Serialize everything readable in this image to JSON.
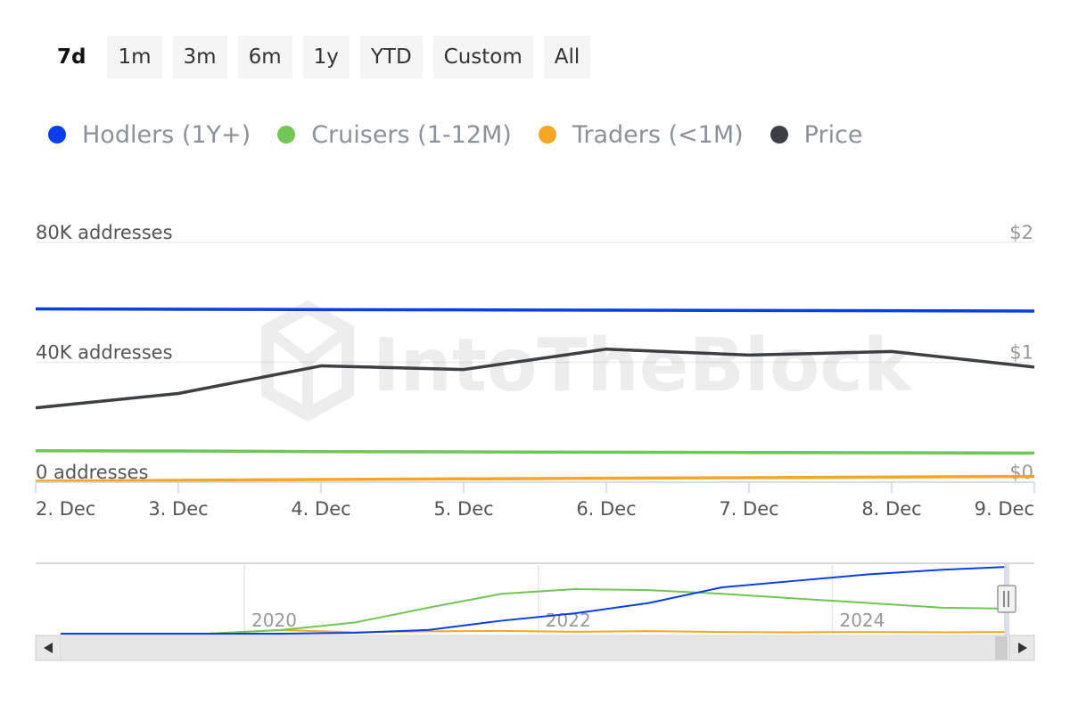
{
  "range_selector": {
    "buttons": [
      "7d",
      "1m",
      "3m",
      "6m",
      "1y",
      "YTD",
      "Custom",
      "All"
    ],
    "active": "7d"
  },
  "legend": [
    {
      "name": "Hodlers (1Y+)",
      "color": "#0a3ee8"
    },
    {
      "name": "Cruisers (1-12M)",
      "color": "#72c656"
    },
    {
      "name": "Traders (<1M)",
      "color": "#f5a623"
    },
    {
      "name": "Price",
      "color": "#3d4043"
    }
  ],
  "watermark": "IntoTheBlock",
  "chart_data": {
    "type": "line",
    "x": [
      "2. Dec",
      "3. Dec",
      "4. Dec",
      "5. Dec",
      "6. Dec",
      "7. Dec",
      "8. Dec",
      "9. Dec"
    ],
    "left_axis": {
      "ticks": [
        "0 addresses",
        "40K addresses",
        "80K addresses"
      ],
      "tick_values": [
        0,
        40000,
        80000
      ],
      "ylim": [
        0,
        80000
      ]
    },
    "right_axis": {
      "ticks": [
        "$0",
        "$1",
        "$2"
      ],
      "tick_values": [
        0,
        1,
        2
      ],
      "ylim": [
        0,
        2
      ]
    },
    "series": [
      {
        "name": "Hodlers (1Y+)",
        "axis": "left",
        "color": "#0a3ee8",
        "values": [
          57800,
          57700,
          57600,
          57500,
          57400,
          57300,
          57200,
          57100
        ]
      },
      {
        "name": "Cruisers (1-12M)",
        "axis": "left",
        "color": "#72c656",
        "values": [
          10500,
          10400,
          10200,
          10100,
          10000,
          9900,
          9800,
          9700
        ]
      },
      {
        "name": "Traders (<1M)",
        "axis": "left",
        "color": "#f5a623",
        "values": [
          300,
          600,
          900,
          1100,
          1300,
          1500,
          1700,
          1900
        ]
      },
      {
        "name": "Price",
        "axis": "right",
        "color": "#3d4043",
        "values": [
          0.62,
          0.74,
          0.97,
          0.94,
          1.11,
          1.06,
          1.09,
          0.96
        ]
      }
    ],
    "grid": true,
    "legend_position": "top-left"
  },
  "navigator": {
    "year_labels": [
      "2020",
      "2022",
      "2024"
    ],
    "x": [
      2018.5,
      2019.0,
      2019.5,
      2020.0,
      2020.5,
      2021.0,
      2021.5,
      2022.0,
      2022.5,
      2023.0,
      2023.5,
      2024.0,
      2024.5,
      2024.93
    ],
    "series": [
      {
        "name": "Hodlers (1Y+)",
        "color": "#0a3ee8",
        "values": [
          0,
          0,
          0,
          0,
          1000,
          4000,
          14000,
          22000,
          33000,
          50000,
          57000,
          64000,
          69000,
          72000
        ]
      },
      {
        "name": "Cruisers (1-12M)",
        "color": "#72c656",
        "values": [
          0,
          0,
          0,
          4000,
          12000,
          28000,
          43000,
          48000,
          47000,
          43000,
          38000,
          33000,
          28000,
          27000
        ]
      },
      {
        "name": "Traders (<1M)",
        "color": "#f5a623",
        "values": [
          0,
          0,
          0,
          4000,
          1500,
          2500,
          3000,
          2000,
          2800,
          1800,
          1500,
          1800,
          1500,
          1800
        ]
      }
    ],
    "ylim": [
      0,
      74000
    ]
  }
}
